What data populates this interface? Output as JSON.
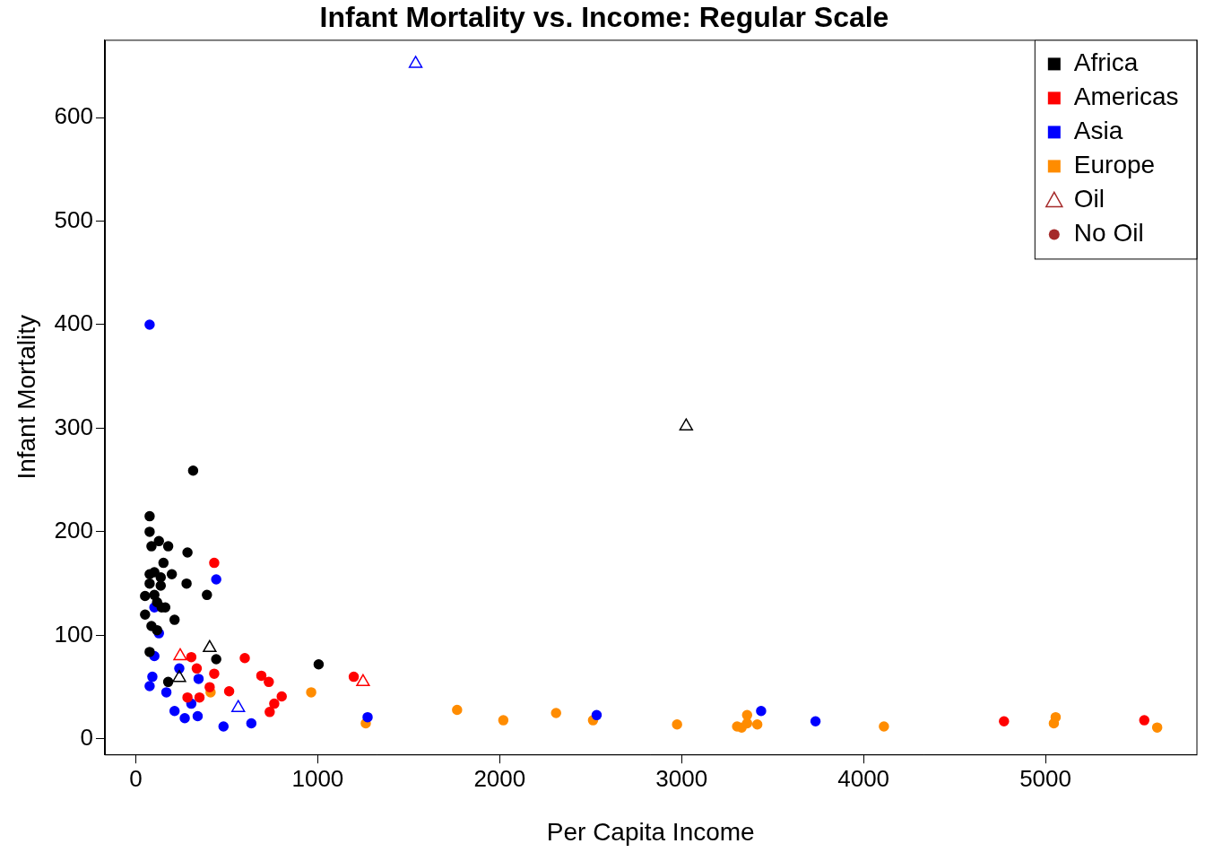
{
  "chart_data": {
    "type": "scatter",
    "title": "Infant Mortality vs. Income: Regular Scale",
    "x_label": "Per Capita Income",
    "y_label": "Infant Mortality",
    "xlim": [
      -170,
      5830
    ],
    "xticks": [
      0,
      1000,
      2000,
      3000,
      4000,
      5000
    ],
    "ylim": [
      -15,
      675
    ],
    "yticks": [
      0,
      100,
      200,
      300,
      400,
      500,
      600
    ],
    "grid": false,
    "legend": "top-right",
    "legend_markers": [
      {
        "name": "Oil",
        "marker": "triangle",
        "color": "#a52a2a"
      },
      {
        "name": "No Oil",
        "marker": "circle",
        "color": "#a52a2a"
      }
    ],
    "series": [
      {
        "name": "Africa",
        "color": "#000000",
        "x": [
          76,
          76,
          86,
          127,
          178,
          315,
          284,
          152,
          76,
          198,
          137,
          102,
          76,
          137,
          279,
          51,
          102,
          117,
          162,
          391,
          51,
          86,
          117,
          213,
          76,
          442,
          1005,
          178,
          142,
          406,
          239,
          3025
        ],
        "values": [
          215,
          200,
          186,
          191,
          186,
          259,
          180,
          170,
          159,
          159,
          156,
          161,
          150,
          148,
          150,
          138,
          139,
          132,
          127,
          139,
          120,
          109,
          105,
          115,
          84,
          77,
          72,
          55,
          127,
          88,
          59,
          302
        ],
        "oil": [
          false,
          false,
          false,
          false,
          false,
          false,
          false,
          false,
          false,
          false,
          false,
          false,
          false,
          false,
          false,
          false,
          false,
          false,
          false,
          false,
          false,
          false,
          false,
          false,
          false,
          false,
          false,
          false,
          false,
          true,
          true,
          true
        ]
      },
      {
        "name": "Americas",
        "color": "#ff0000",
        "x": [
          431,
          305,
          599,
          690,
          731,
          335,
          431,
          513,
          802,
          761,
          736,
          284,
          350,
          406,
          1198,
          4772,
          5543,
          244,
          1249
        ],
        "values": [
          170,
          79,
          78,
          61,
          55,
          68,
          63,
          46,
          41,
          34,
          26,
          40,
          40,
          50,
          60,
          17,
          18,
          80,
          55
        ],
        "oil": [
          false,
          false,
          false,
          false,
          false,
          false,
          false,
          false,
          false,
          false,
          false,
          false,
          false,
          false,
          false,
          false,
          false,
          true,
          true
        ]
      },
      {
        "name": "Asia",
        "color": "#0000ff",
        "x": [
          76,
          442,
          102,
          127,
          102,
          91,
          76,
          168,
          239,
          345,
          213,
          305,
          269,
          340,
          482,
          635,
          1274,
          2533,
          3437,
          3736,
          1538,
          563
        ],
        "values": [
          400,
          154,
          127,
          102,
          80,
          60,
          51,
          45,
          68,
          58,
          27,
          34,
          20,
          22,
          12,
          15,
          21,
          23,
          27,
          17,
          652,
          30
        ],
        "oil": [
          false,
          false,
          false,
          false,
          false,
          false,
          false,
          false,
          false,
          false,
          false,
          false,
          false,
          false,
          false,
          false,
          false,
          false,
          false,
          false,
          true,
          true
        ]
      },
      {
        "name": "Europe",
        "color": "#ff8c00",
        "x": [
          411,
          964,
          1264,
          1766,
          2020,
          2310,
          2513,
          2975,
          3305,
          3330,
          3360,
          3360,
          3416,
          4112,
          5056,
          5046,
          5614
        ],
        "values": [
          45,
          45,
          15,
          28,
          18,
          25,
          18,
          14,
          12,
          11,
          23,
          15,
          14,
          12,
          21,
          15,
          11
        ],
        "oil": [
          false,
          false,
          false,
          false,
          false,
          false,
          false,
          false,
          false,
          false,
          false,
          false,
          false,
          false,
          false,
          false,
          false
        ]
      }
    ]
  }
}
